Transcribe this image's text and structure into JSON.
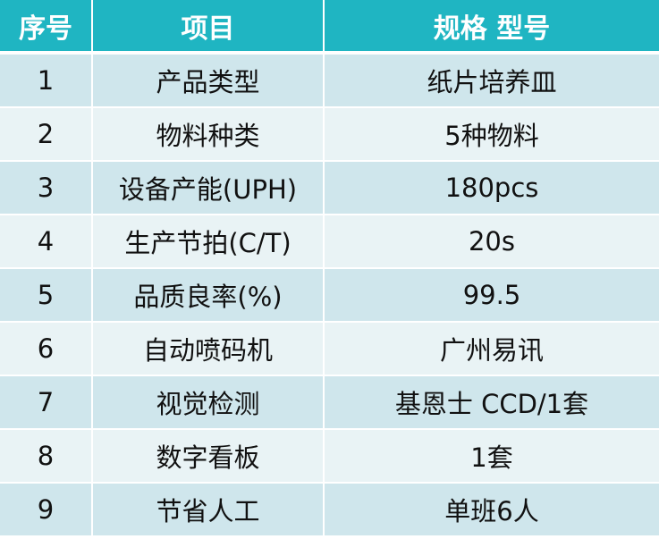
{
  "table": {
    "headers": [
      "序号",
      "项目",
      "规格 型号"
    ],
    "rows": [
      [
        "1",
        "产品类型",
        "纸片培养皿"
      ],
      [
        "2",
        "物料种类",
        "5种物料"
      ],
      [
        "3",
        "设备产能(UPH)",
        "180pcs"
      ],
      [
        "4",
        "生产节拍(C/T)",
        "20s"
      ],
      [
        "5",
        "品质良率(%)",
        "99.5"
      ],
      [
        "6",
        "自动喷码机",
        "广州易讯"
      ],
      [
        "7",
        "视觉检测",
        "基恩士 CCD/1套"
      ],
      [
        "8",
        "数字看板",
        "1套"
      ],
      [
        "9",
        "节省人工",
        "单班6人"
      ]
    ]
  },
  "colors": {
    "header_bg": "#1fb5c2",
    "row_odd_bg": "#cfe6ec",
    "row_even_bg": "#e9f3f5"
  }
}
